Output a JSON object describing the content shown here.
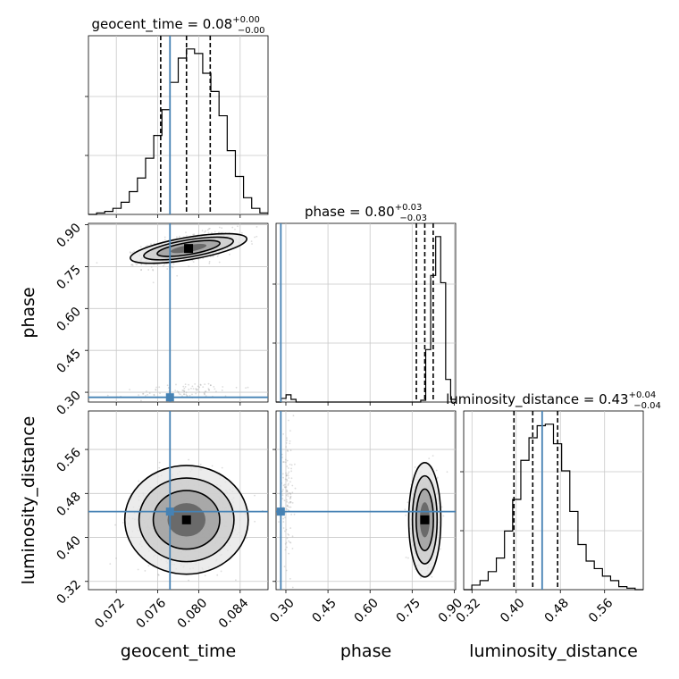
{
  "chart_data": {
    "type": "corner",
    "parameters": [
      "geocent_time",
      "phase",
      "luminosity_distance"
    ],
    "truth_color": "#4682b4",
    "truths": {
      "geocent_time": 0.0772,
      "phase": 0.282,
      "luminosity_distance": 0.447
    },
    "axes": {
      "geocent_time": {
        "range": [
          0.0693,
          0.0867
        ],
        "ticks": [
          0.072,
          0.076,
          0.08,
          0.084
        ],
        "tick_labels": [
          "0.072",
          "0.076",
          "0.080",
          "0.084"
        ],
        "label": "geocent_time"
      },
      "phase": {
        "range": [
          0.265,
          0.905
        ],
        "ticks": [
          0.3,
          0.45,
          0.6,
          0.75,
          0.9
        ],
        "tick_labels": [
          "0.30",
          "0.45",
          "0.60",
          "0.75",
          "0.90"
        ],
        "label": "phase"
      },
      "luminosity_distance": {
        "range": [
          0.305,
          0.63
        ],
        "ticks": [
          0.32,
          0.4,
          0.48,
          0.56
        ],
        "tick_labels": [
          "0.32",
          "0.40",
          "0.48",
          "0.56"
        ],
        "label": "luminosity_distance"
      }
    },
    "titles": {
      "geocent_time": {
        "main": "geocent_time = 0.08",
        "sup": "+0.00",
        "sub": "−0.00"
      },
      "phase": {
        "main": "phase = 0.80",
        "sup": "+0.03",
        "sub": "−0.03"
      },
      "luminosity_distance": {
        "main": "luminosity_distance = 0.43",
        "sup": "+0.04",
        "sub": "−0.04"
      }
    },
    "quantiles": {
      "geocent_time": [
        0.0763,
        0.0788,
        0.0811
      ],
      "phase": [
        0.765,
        0.795,
        0.825
      ],
      "luminosity_distance": [
        0.396,
        0.43,
        0.475
      ]
    },
    "histograms": {
      "geocent_time": {
        "edges_range": [
          0.0693,
          0.0867
        ],
        "counts": [
          0,
          1,
          2,
          4,
          8,
          15,
          24,
          37,
          52,
          69,
          87,
          103,
          109,
          106,
          93,
          81,
          65,
          42,
          25,
          11,
          4,
          1
        ]
      },
      "phase": {
        "edges_range": [
          0.265,
          0.905
        ],
        "counts": [
          0,
          4,
          8,
          3,
          0,
          0,
          0,
          0,
          0,
          0,
          0,
          0,
          0,
          0,
          0,
          0,
          0,
          0,
          0,
          0,
          0,
          0,
          0,
          0,
          0,
          0,
          0,
          0,
          0,
          2,
          58,
          140,
          183,
          132,
          25,
          3
        ]
      },
      "luminosity_distance": {
        "edges_range": [
          0.305,
          0.63
        ],
        "counts": [
          0,
          3,
          6,
          12,
          21,
          39,
          60,
          86,
          101,
          109,
          110,
          97,
          79,
          52,
          30,
          19,
          14,
          9,
          6,
          2,
          1,
          0
        ]
      }
    },
    "grid": true,
    "xlabel_bottom": [
      "geocent_time",
      "phase",
      "luminosity_distance"
    ],
    "ylabel_left": [
      "phase",
      "luminosity_distance"
    ]
  }
}
